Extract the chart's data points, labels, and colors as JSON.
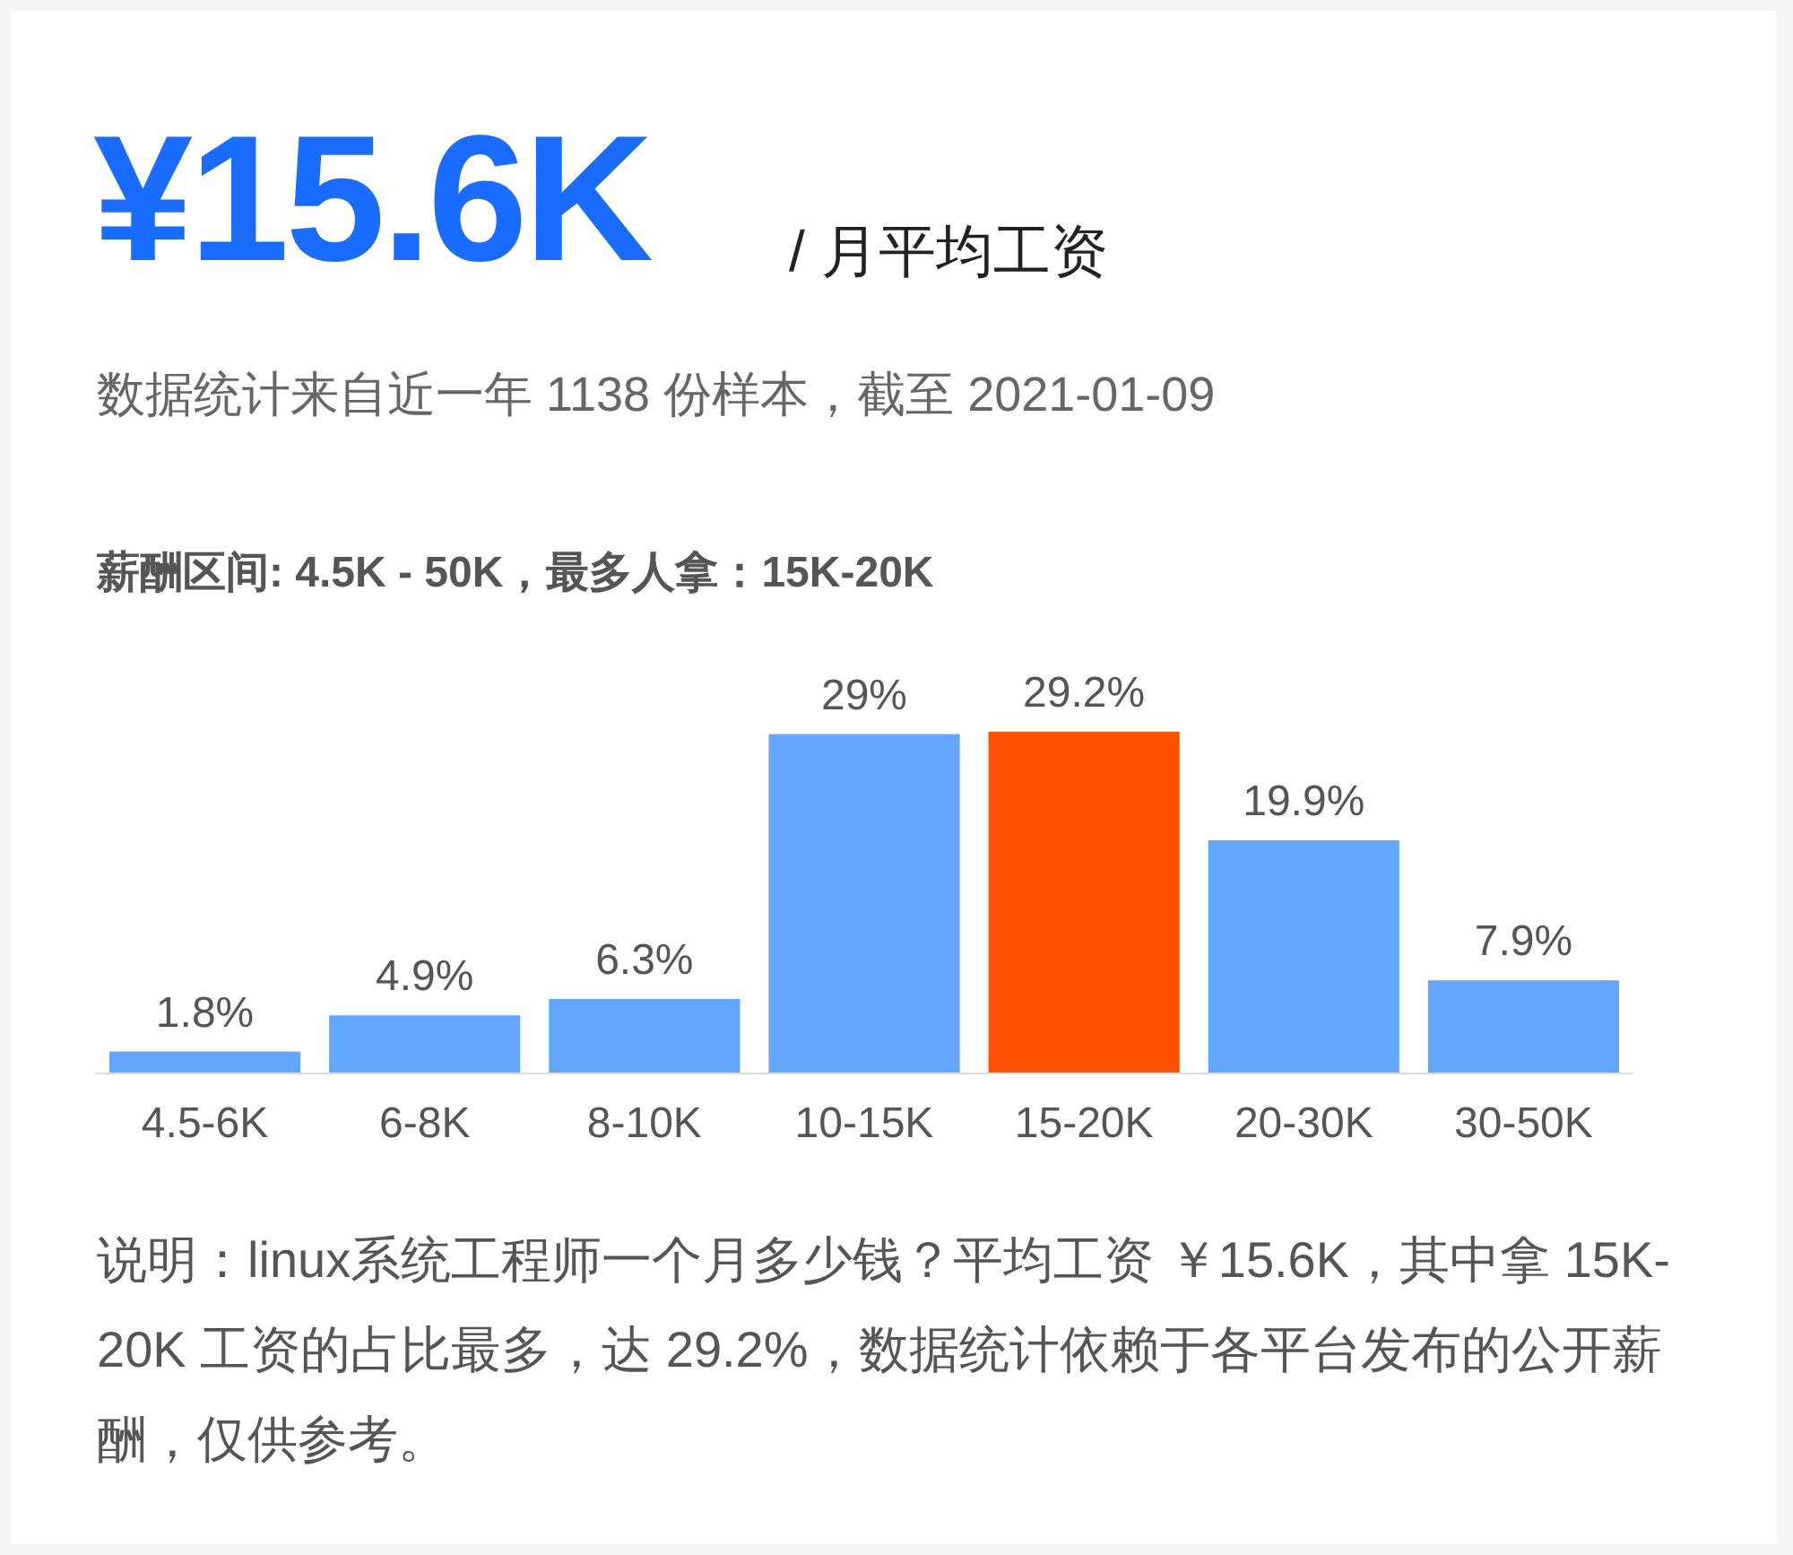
{
  "chart_data": {
    "type": "bar",
    "title": "¥15.6K",
    "subtitle": "/ 月平均工资",
    "annotations": [
      "数据统计来自近一年 1138 份样本，截至 2021-01-09",
      "薪酬区间: 4.5K - 50K，最多人拿：15K-20K",
      "说明：linux系统工程师一个月多少钱？平均工资 ￥15.6K，其中拿 15K-20K 工资的占比最多，达 29.2%，数据统计依赖于各平台发布的公开薪酬，仅供参考。"
    ],
    "categories": [
      "4.5-6K",
      "6-8K",
      "8-10K",
      "10-15K",
      "15-20K",
      "20-30K",
      "30-50K"
    ],
    "values": [
      1.8,
      4.9,
      6.3,
      29,
      29.2,
      19.9,
      7.9
    ],
    "colors": [
      "#62a6ff",
      "#62a6ff",
      "#62a6ff",
      "#62a6ff",
      "#ff5000",
      "#62a6ff",
      "#62a6ff"
    ],
    "value_labels": [
      "1.8%",
      "4.9%",
      "6.3%",
      "29%",
      "29.2%",
      "19.9%",
      "7.9%"
    ]
  }
}
